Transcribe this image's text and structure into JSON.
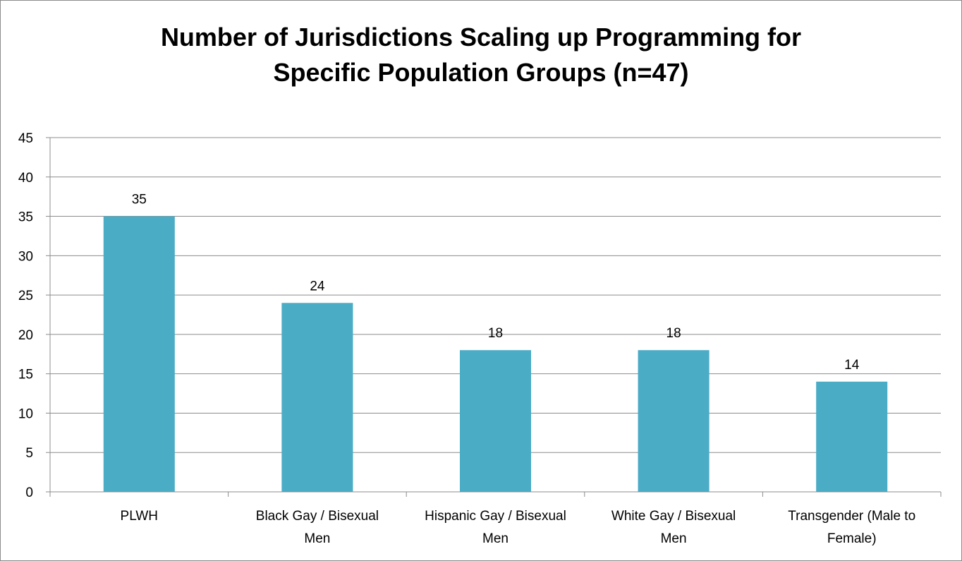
{
  "chart_data": {
    "type": "bar",
    "title_lines": [
      "Number of Jurisdictions Scaling up Programming for",
      "Specific Population Groups (n=47)"
    ],
    "categories": [
      [
        "PLWH"
      ],
      [
        "Black Gay / Bisexual",
        "Men"
      ],
      [
        "Hispanic Gay / Bisexual",
        "Men"
      ],
      [
        "White Gay / Bisexual",
        "Men"
      ],
      [
        "Transgender (Male to",
        "Female)"
      ]
    ],
    "values": [
      35,
      24,
      18,
      18,
      14
    ],
    "value_labels": [
      "35",
      "24",
      "18",
      "18",
      "14"
    ],
    "ylim": [
      0,
      45
    ],
    "yticks": [
      0,
      5,
      10,
      15,
      20,
      25,
      30,
      35,
      40,
      45
    ],
    "ytick_labels": [
      "0",
      "5",
      "10",
      "15",
      "20",
      "25",
      "30",
      "35",
      "40",
      "45"
    ],
    "grid": true,
    "legend": "none",
    "bar_color": "#4bacc6"
  }
}
